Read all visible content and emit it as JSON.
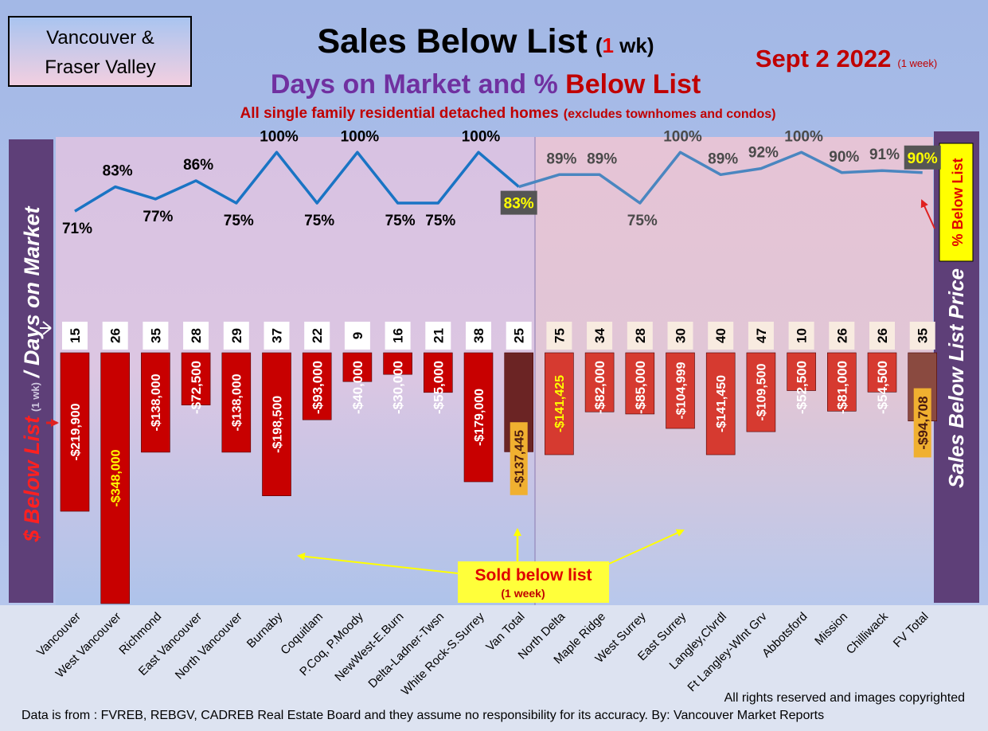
{
  "header": {
    "region_line1": "Vancouver &",
    "region_line2": "Fraser Valley",
    "title_main": "Sales Below List",
    "title_paren_open": "(",
    "title_paren_num": "1",
    "title_paren_rest": " wk)",
    "subtitle_part1": "Days on Market and % ",
    "subtitle_part2": "Below List",
    "description_main": "All single family residential detached homes",
    "description_paren": "(excludes townhomes and condos)",
    "date": "Sept 2  2022",
    "date_note": "(1 week)"
  },
  "side_labels": {
    "left_part1": "$ Below List",
    "left_part2": "(1 wk)",
    "left_part3": "/ Days on Market",
    "right_main": "Sales Below List Price",
    "right_box": "% Below List"
  },
  "callout": {
    "line1": "Sold below list",
    "line2": "(1 week)"
  },
  "footer": {
    "copyright": "All rights reserved and  images copyrighted",
    "source": "Data is from : FVREB, REBGV, CADREB Real Estate Board and they assume no responsibility for its accuracy. By: Vancouver Market Reports"
  },
  "colors": {
    "van_bar": "#c80000",
    "van_total_bar": "#6b2424",
    "fv_bar": "#d63a30",
    "fv_total_bar": "#8a4a40",
    "line_van": "#1a74c4",
    "line_fv": "#4a86c0",
    "title_red": "#c00000",
    "subtitle_purple": "#7030a0",
    "side_panel": "#5e3f78",
    "highlight_yellow": "#ffff00",
    "highlight_orange": "#f0b030"
  },
  "chart_data": {
    "type": "bar",
    "categories": [
      "Vancouver",
      "West Vancouver",
      "Richmond",
      "East Vancouver",
      "North Vancouver",
      "Burnaby",
      "Coquitlam",
      "P.Coq, P.Moody",
      "NewWest-E.Burn",
      "Delta-Ladner-Twsn",
      "White Rock-S.Surrey",
      "Van Total",
      "North Delta",
      "Maple Ridge",
      "West Surrey",
      "East Surrey",
      "Langley,Clvrdl",
      "Ft Langley-Wlnt Grv",
      "Abbotsford",
      "Mission",
      "Chilliwack",
      "FV Total"
    ],
    "series": [
      {
        "values": [
          -219900,
          -348000,
          -138000,
          -72500,
          -138000,
          -198500,
          -93000,
          -40000,
          -30000,
          -55000,
          -179000,
          -137445,
          -141425,
          -82000,
          -85000,
          -104999,
          -141450,
          -109500,
          -52500,
          -81000,
          -54500,
          -94708
        ],
        "labels": [
          "-$219,900",
          "-$348,000",
          "-$138,000",
          "-$72,500",
          "-$138,000",
          "-$198,500",
          "-$93,000",
          "-$40,000",
          "-$30,000",
          "-$55,000",
          "-$179,000",
          "-$137,445",
          "-$141,425",
          "-$82,000",
          "-$85,000",
          "-$104,999",
          "-$141,450",
          "-$109,500",
          "-$52,500",
          "-$81,000",
          "-$54,500",
          "-$94,708"
        ]
      },
      {
        "values": [
          15,
          26,
          35,
          28,
          29,
          37,
          22,
          9,
          16,
          21,
          38,
          25,
          75,
          34,
          28,
          30,
          40,
          47,
          10,
          26,
          26,
          35
        ]
      },
      {
        "values": [
          71,
          83,
          77,
          86,
          75,
          100,
          75,
          100,
          75,
          75,
          100,
          83,
          89,
          89,
          75,
          100,
          89,
          92,
          100,
          90,
          91,
          90
        ],
        "labels": [
          "71%",
          "83%",
          "77%",
          "86%",
          "75%",
          "100%",
          "75%",
          "100%",
          "75%",
          "75%",
          "100%",
          "83%",
          "89%",
          "89%",
          "75%",
          "100%",
          "89%",
          "92%",
          "100%",
          "90%",
          "91%",
          "90%"
        ]
      }
    ]
  }
}
